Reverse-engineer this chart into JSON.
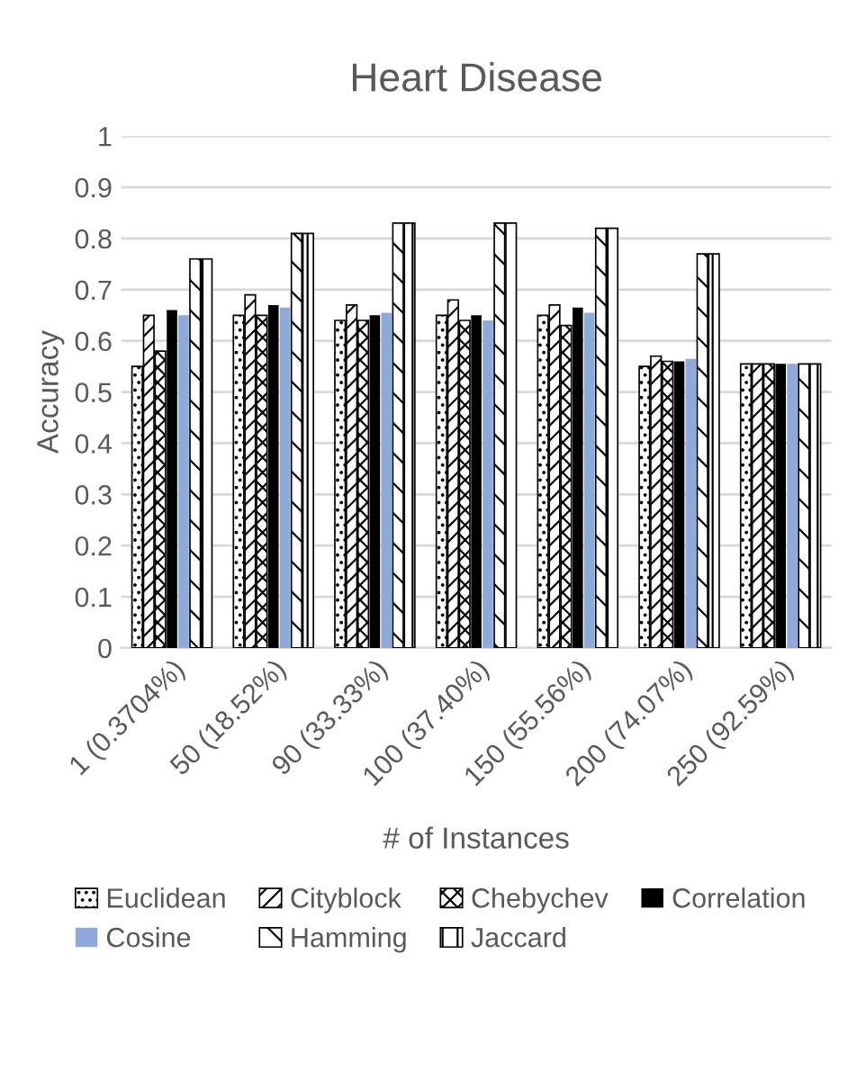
{
  "chart_data": {
    "type": "bar",
    "title": "Heart Disease",
    "xlabel": "# of Instances",
    "ylabel": "Accuracy",
    "categories": [
      "1 (0.3704%)",
      "50 (18.52%)",
      "90 (33.33%)",
      "100 (37.40%)",
      "150 (55.56%)",
      "200 (74.07%)",
      "250 (92.59%)"
    ],
    "series": [
      {
        "name": "Euclidean",
        "color": "#000000",
        "values": [
          0.55,
          0.65,
          0.64,
          0.65,
          0.65,
          0.55,
          0.555
        ]
      },
      {
        "name": "Cityblock",
        "color": "#000000",
        "values": [
          0.65,
          0.69,
          0.67,
          0.68,
          0.67,
          0.57,
          0.555
        ]
      },
      {
        "name": "Chebychev",
        "color": "#000000",
        "values": [
          0.58,
          0.65,
          0.64,
          0.64,
          0.63,
          0.56,
          0.555
        ]
      },
      {
        "name": "Correlation",
        "color": "#000000",
        "values": [
          0.66,
          0.67,
          0.65,
          0.65,
          0.665,
          0.56,
          0.555
        ]
      },
      {
        "name": "Cosine",
        "color": "#8eaadb",
        "values": [
          0.65,
          0.665,
          0.655,
          0.64,
          0.655,
          0.565,
          0.555
        ]
      },
      {
        "name": "Hamming",
        "color": "#000000",
        "values": [
          0.76,
          0.81,
          0.83,
          0.83,
          0.82,
          0.77,
          0.555
        ]
      },
      {
        "name": "Jaccard",
        "color": "#000000",
        "values": [
          0.76,
          0.81,
          0.83,
          0.83,
          0.82,
          0.77,
          0.555
        ]
      }
    ],
    "ylim": [
      0,
      1
    ],
    "yticks": [
      0,
      0.1,
      0.2,
      0.3,
      0.4,
      0.5,
      0.6,
      0.7,
      0.8,
      0.9,
      1
    ],
    "grid": "y",
    "legend": "bottom"
  }
}
